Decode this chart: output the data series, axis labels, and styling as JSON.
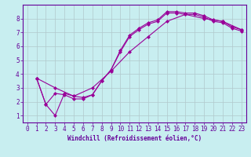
{
  "background_color": "#c8eef0",
  "line_color": "#990099",
  "grid_color": "#b0c8cc",
  "axis_color": "#660099",
  "xlabel": "Windchill (Refroidissement éolien,°C)",
  "xlim": [
    -0.5,
    23.5
  ],
  "ylim": [
    0.5,
    9.0
  ],
  "xticks": [
    0,
    1,
    2,
    3,
    4,
    5,
    6,
    7,
    8,
    9,
    10,
    11,
    12,
    13,
    14,
    15,
    16,
    17,
    18,
    19,
    20,
    21,
    22,
    23
  ],
  "yticks": [
    1,
    2,
    3,
    4,
    5,
    6,
    7,
    8
  ],
  "line1_x": [
    1,
    2,
    3,
    4,
    5,
    6,
    7,
    8,
    9,
    10,
    11,
    12,
    13,
    14,
    15,
    16,
    17,
    18,
    19,
    20,
    21,
    22,
    23
  ],
  "line1_y": [
    3.7,
    1.8,
    1.0,
    2.6,
    2.4,
    2.3,
    2.5,
    3.5,
    4.3,
    5.7,
    6.8,
    7.3,
    7.7,
    7.9,
    8.5,
    8.5,
    8.4,
    8.4,
    8.2,
    7.9,
    7.8,
    7.4,
    7.2
  ],
  "line2_x": [
    1,
    2,
    3,
    4,
    5,
    6,
    7,
    8,
    9,
    10,
    11,
    12,
    13,
    14,
    15,
    16,
    17,
    18,
    19,
    20,
    21,
    22,
    23
  ],
  "line2_y": [
    3.7,
    1.8,
    2.6,
    2.5,
    2.2,
    2.2,
    2.5,
    3.5,
    4.3,
    5.6,
    6.7,
    7.2,
    7.6,
    7.8,
    8.4,
    8.4,
    8.3,
    8.3,
    8.1,
    7.8,
    7.7,
    7.3,
    7.1
  ],
  "line3_x": [
    1,
    3,
    5,
    7,
    9,
    11,
    13,
    15,
    17,
    19,
    21,
    23
  ],
  "line3_y": [
    3.7,
    3.0,
    2.4,
    3.0,
    4.2,
    5.6,
    6.7,
    7.8,
    8.3,
    8.0,
    7.8,
    7.2
  ],
  "marker": "D",
  "marker_size": 2.0,
  "line_width": 0.8,
  "tick_fontsize": 5.5,
  "xlabel_fontsize": 5.5
}
